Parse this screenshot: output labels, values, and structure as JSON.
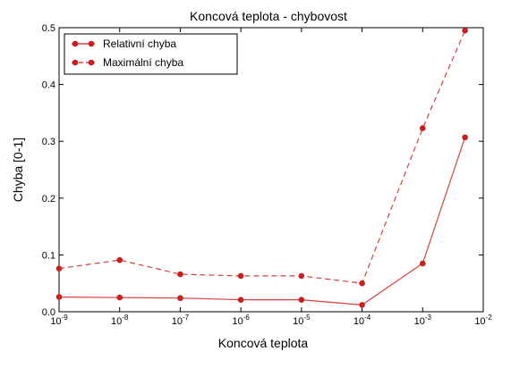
{
  "chart_data": {
    "type": "line",
    "title": "Koncová teplota - chybovost",
    "xlabel": "Koncová teplota",
    "ylabel": "Chyba [0-1]",
    "x_scale": "log",
    "xlim": [
      1e-09,
      0.01
    ],
    "ylim": [
      0,
      0.5
    ],
    "x": [
      1e-09,
      1e-08,
      1e-07,
      1e-06,
      1e-05,
      0.0001,
      0.001,
      0.005
    ],
    "x_ticks": [
      {
        "base": "10",
        "exp": "-9",
        "value": 1e-09
      },
      {
        "base": "10",
        "exp": "-8",
        "value": 1e-08
      },
      {
        "base": "10",
        "exp": "-7",
        "value": 1e-07
      },
      {
        "base": "10",
        "exp": "-6",
        "value": 1e-06
      },
      {
        "base": "10",
        "exp": "-5",
        "value": 1e-05
      },
      {
        "base": "10",
        "exp": "-4",
        "value": 0.0001
      },
      {
        "base": "10",
        "exp": "-3",
        "value": 0.001
      },
      {
        "base": "10",
        "exp": "-2",
        "value": 0.01
      }
    ],
    "y_ticks": [
      "0.0",
      "0.1",
      "0.2",
      "0.3",
      "0.4",
      "0.5"
    ],
    "grid": false,
    "legend_position": "top-left",
    "series": [
      {
        "name": "Relativní chyba",
        "style": "solid",
        "color": "#cc1e1e",
        "values": [
          0.026,
          0.025,
          0.024,
          0.021,
          0.021,
          0.012,
          0.085,
          0.307
        ]
      },
      {
        "name": "Maximální chyba",
        "style": "dashed",
        "color": "#cc1e1e",
        "values": [
          0.076,
          0.091,
          0.066,
          0.063,
          0.063,
          0.05,
          0.323,
          0.495
        ]
      }
    ]
  }
}
